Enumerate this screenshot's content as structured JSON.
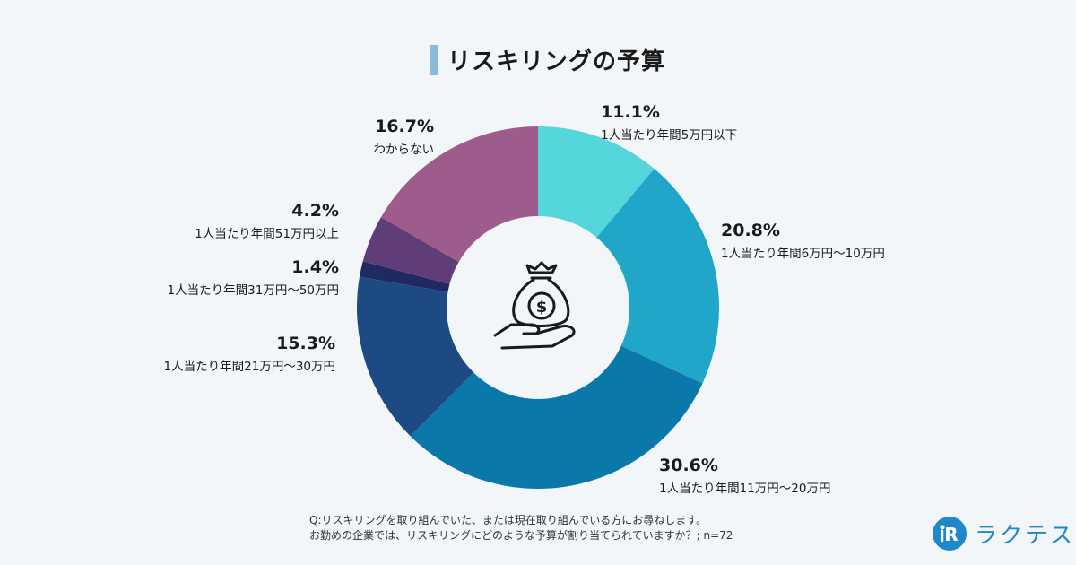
{
  "title": "リスキリングの予算",
  "chart_data": {
    "type": "pie",
    "donut": true,
    "categories": [
      "1人当たり年間5万円以下",
      "1人当たり年間6万円〜10万円",
      "1人当たり年間11万円〜20万円",
      "1人当たり年間21万円〜30万円",
      "1人当たり年間31万円〜50万円",
      "1人当たり年間51万円以上",
      "わからない"
    ],
    "values": [
      11.1,
      20.8,
      30.6,
      15.3,
      1.4,
      4.2,
      16.7
    ],
    "labels": [
      "11.1%",
      "20.8%",
      "30.6%",
      "15.3%",
      "1.4%",
      "4.2%",
      "16.7%"
    ],
    "colors": [
      "#55d6da",
      "#20a6c8",
      "#0b78aa",
      "#1d4a82",
      "#1f2a60",
      "#5f3d78",
      "#9d5c8b"
    ],
    "center_icon": "money-bag-hand-icon"
  },
  "note": {
    "line1": "Q:リスキリングを取り組んでいた、または現在取り組んでいる方にお尋ねします。",
    "line2": "お勤めの企業では、リスキリングにどのような予算が割り当てられていますか？; n=72"
  },
  "logo": {
    "text": "ラクテス",
    "mark": "R"
  }
}
